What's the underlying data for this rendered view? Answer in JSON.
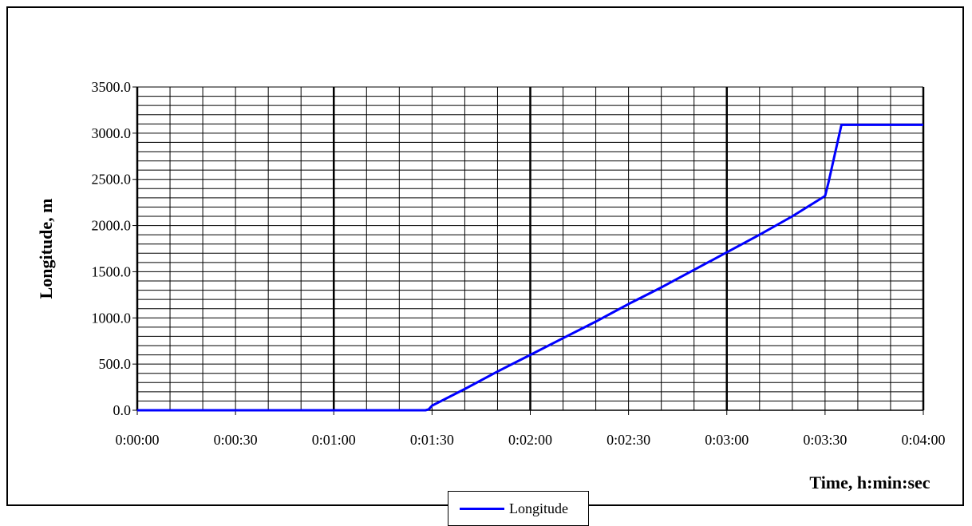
{
  "chart_data": {
    "type": "line",
    "title": "",
    "xlabel": "Time, h:min:sec",
    "ylabel": "Longitude, m",
    "x_tick_labels": [
      "0:00:00",
      "0:00:30",
      "0:01:00",
      "0:01:30",
      "0:02:00",
      "0:02:30",
      "0:03:00",
      "0:03:30",
      "0:04:00"
    ],
    "y_tick_labels": [
      "0.0",
      "500.0",
      "1000.0",
      "1500.0",
      "2000.0",
      "2500.0",
      "3000.0",
      "3500.0"
    ],
    "xlim": [
      0,
      240
    ],
    "ylim": [
      0,
      3500
    ],
    "x_major_step": 30,
    "x_minor_step": 10,
    "y_major_step": 500,
    "y_minor_step": 100,
    "grid": true,
    "legend_position": "bottom-center",
    "series": [
      {
        "name": "Longitude",
        "color": "#0000FF",
        "x": [
          0,
          30,
          60,
          88,
          89,
          90,
          100,
          110,
          120,
          130,
          140,
          150,
          160,
          170,
          180,
          190,
          200,
          210,
          211,
          215,
          240
        ],
        "y": [
          0,
          0,
          0,
          0,
          10,
          50,
          230,
          420,
          600,
          780,
          960,
          1150,
          1330,
          1520,
          1710,
          1900,
          2100,
          2320,
          2460,
          3090,
          3090
        ]
      }
    ]
  }
}
